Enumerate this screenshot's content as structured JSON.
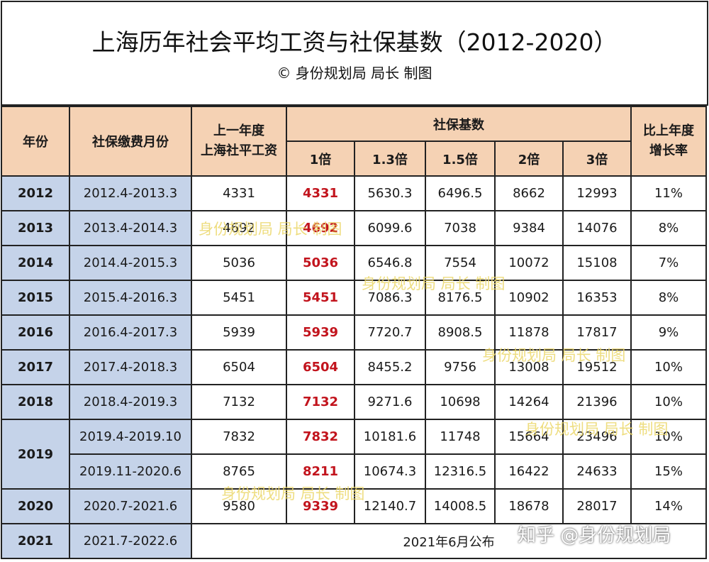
{
  "title": "上海历年社会平均工资与社保基数（2012-2020）",
  "subtitle": "© 身份规划局 局长 制图",
  "headers": {
    "year": "年份",
    "months": "社保缴费月份",
    "prev_salary_line1": "上一年度",
    "prev_salary_line2": "上海社平工资",
    "base": "社保基数",
    "growth_line1": "比上年度",
    "growth_line2": "增长率",
    "m1": "1倍",
    "m13": "1.3倍",
    "m15": "1.5倍",
    "m2": "2倍",
    "m3": "3倍"
  },
  "rows": [
    {
      "year": "2012",
      "months": "2012.4-2013.3",
      "salary": "4331",
      "b1": "4331",
      "b13": "5630.3",
      "b15": "6496.5",
      "b2": "8662",
      "b3": "12993",
      "growth": "11%"
    },
    {
      "year": "2013",
      "months": "2013.4-2014.3",
      "salary": "4692",
      "b1": "4692",
      "b13": "6099.6",
      "b15": "7038",
      "b2": "9384",
      "b3": "14076",
      "growth": "8%"
    },
    {
      "year": "2014",
      "months": "2014.4-2015.3",
      "salary": "5036",
      "b1": "5036",
      "b13": "6546.8",
      "b15": "7554",
      "b2": "10072",
      "b3": "15108",
      "growth": "7%"
    },
    {
      "year": "2015",
      "months": "2015.4-2016.3",
      "salary": "5451",
      "b1": "5451",
      "b13": "7086.3",
      "b15": "8176.5",
      "b2": "10902",
      "b3": "16353",
      "growth": "8%"
    },
    {
      "year": "2016",
      "months": "2016.4-2017.3",
      "salary": "5939",
      "b1": "5939",
      "b13": "7720.7",
      "b15": "8908.5",
      "b2": "11878",
      "b3": "17817",
      "growth": "9%"
    },
    {
      "year": "2017",
      "months": "2017.4-2018.3",
      "salary": "6504",
      "b1": "6504",
      "b13": "8455.2",
      "b15": "9756",
      "b2": "13008",
      "b3": "19512",
      "growth": "10%"
    },
    {
      "year": "2018",
      "months": "2018.4-2019.3",
      "salary": "7132",
      "b1": "7132",
      "b13": "9271.6",
      "b15": "10698",
      "b2": "14264",
      "b3": "21396",
      "growth": "10%"
    },
    {
      "year": "2019",
      "months": "2019.4-2019.10",
      "salary": "7832",
      "b1": "7832",
      "b13": "10181.6",
      "b15": "11748",
      "b2": "15664",
      "b3": "23496",
      "growth": "10%"
    },
    {
      "year": "",
      "months": "2019.11-2020.6",
      "salary": "8765",
      "b1": "8211",
      "b13": "10674.3",
      "b15": "12316.5",
      "b2": "16422",
      "b3": "24633",
      "growth": "15%"
    },
    {
      "year": "2020",
      "months": "2020.7-2021.6",
      "salary": "9580",
      "b1": "9339",
      "b13": "12140.7",
      "b15": "14008.5",
      "b2": "18678",
      "b3": "28017",
      "growth": "14%"
    },
    {
      "year": "2021",
      "months": "2021.7-2022.6",
      "note": "2021年6月公布"
    }
  ],
  "watermark": "身份规划局 局长 制图",
  "platform_mark": "知乎 @身份规划局"
}
